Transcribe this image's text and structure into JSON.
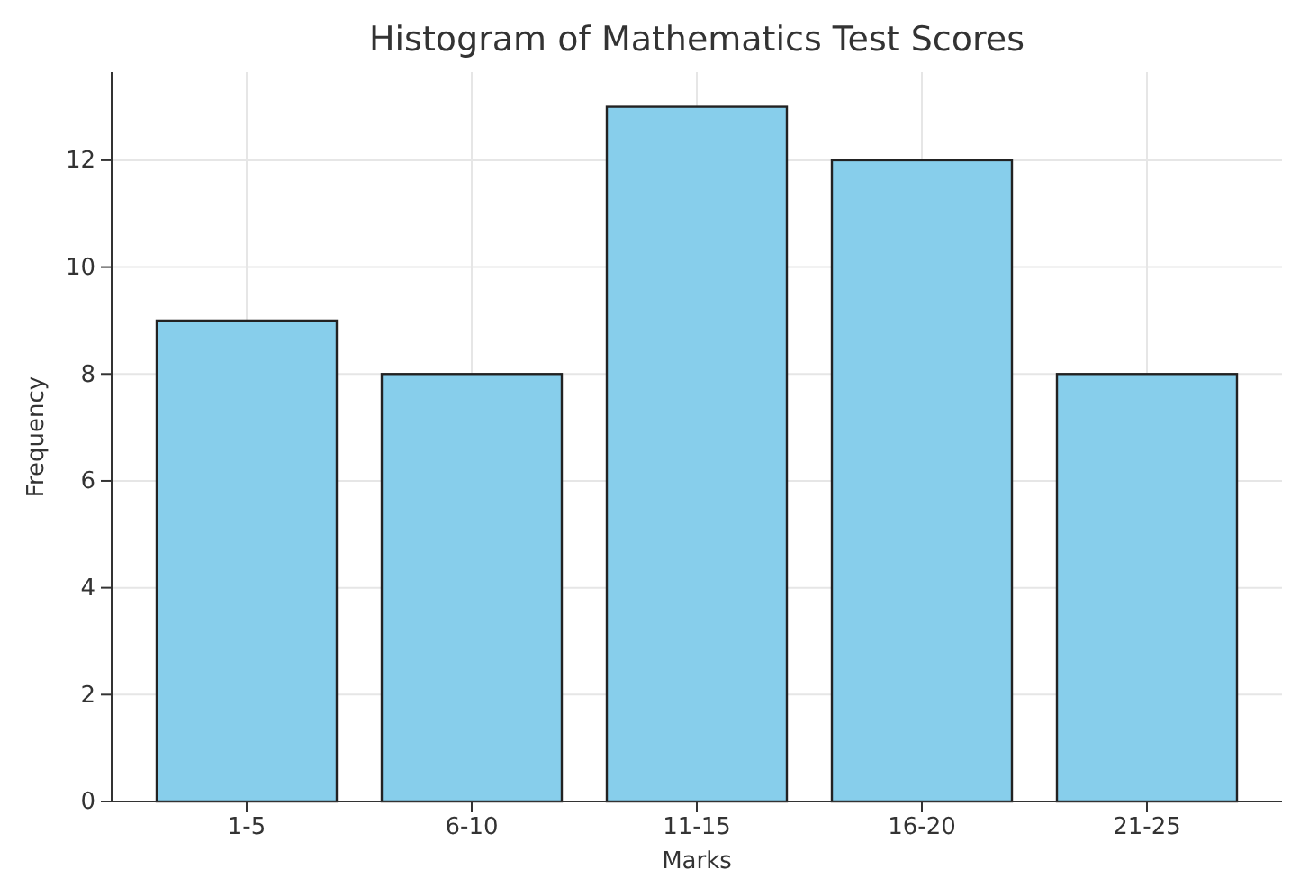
{
  "chart_data": {
    "type": "bar",
    "title": "Histogram of Mathematics Test Scores",
    "xlabel": "Marks",
    "ylabel": "Frequency",
    "categories": [
      "1-5",
      "6-10",
      "11-15",
      "16-20",
      "21-25"
    ],
    "series": [
      {
        "color": "#87ceeb",
        "values": [
          9,
          8,
          13,
          12,
          8
        ]
      }
    ],
    "ylim": [
      0,
      13.65
    ],
    "yticks": [
      0,
      2,
      4,
      6,
      8,
      10,
      12
    ],
    "grid": true
  }
}
